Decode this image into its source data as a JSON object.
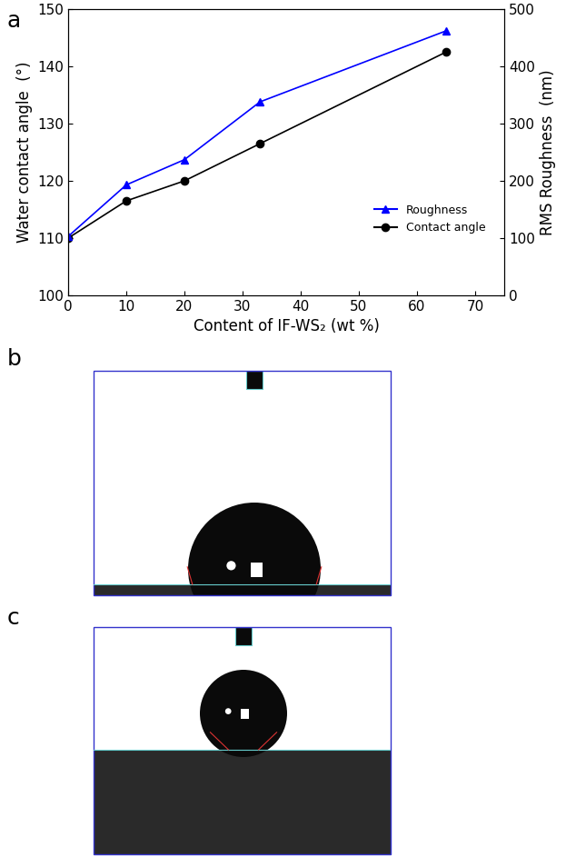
{
  "chart_data": {
    "type": "line",
    "title": "a",
    "x_label": "Content of IF-WS₂ (wt %)",
    "y_label": "Water contact angle  (°)",
    "y2_label": "RMS Roughness  (nm)",
    "x": [
      0,
      10,
      20,
      33,
      65
    ],
    "series": [
      {
        "name": "Roughness",
        "color": "#0000ff",
        "marker": "triangle",
        "line_style": "solid",
        "axis": "y2",
        "values": [
          103,
          193,
          237,
          338,
          462
        ]
      },
      {
        "name": "Contact angle",
        "color": "#000000",
        "marker": "circle",
        "line_style": "solid",
        "axis": "y",
        "values": [
          110,
          116.5,
          120,
          126.5,
          142.5
        ]
      }
    ],
    "xlim": [
      0,
      75
    ],
    "xticks": [
      0,
      10,
      20,
      30,
      40,
      50,
      60,
      70
    ],
    "ylim": [
      100,
      150
    ],
    "yticks": [
      100,
      110,
      120,
      130,
      140,
      150
    ],
    "y2lim": [
      0,
      500
    ],
    "y2ticks": [
      0,
      100,
      200,
      300,
      400,
      500
    ],
    "legend": "lower right",
    "grid": false
  },
  "images": [
    {
      "label": "b"
    },
    {
      "label": "c"
    }
  ]
}
